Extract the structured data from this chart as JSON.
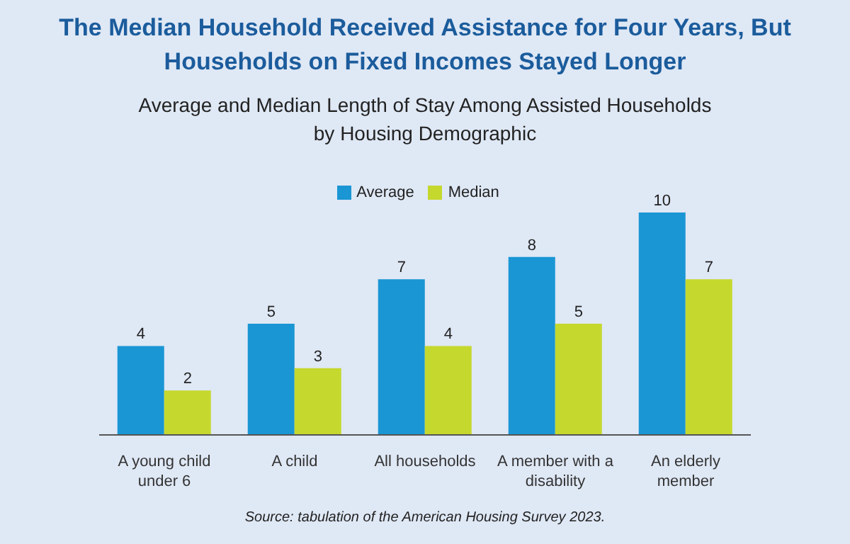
{
  "chart_data": {
    "type": "bar",
    "title": "The Median Household Received Assistance for Four Years, But Households on Fixed Incomes Stayed Longer",
    "subtitle": "Average and Median Length of Stay Among Assisted Households by Housing Demographic",
    "categories": [
      "A young child under 6",
      "A child",
      "All households",
      "A member with a disability",
      "An elderly member"
    ],
    "series": [
      {
        "name": "Average",
        "color": "#1a96d4",
        "values": [
          4,
          5,
          7,
          8,
          10
        ]
      },
      {
        "name": "Median",
        "color": "#c5d82e",
        "values": [
          2,
          3,
          4,
          5,
          7
        ]
      }
    ],
    "data_labels": true,
    "legend": "top",
    "grid": false,
    "annotations": [
      "Source: tabulation of the American Housing Survey 2023."
    ]
  }
}
